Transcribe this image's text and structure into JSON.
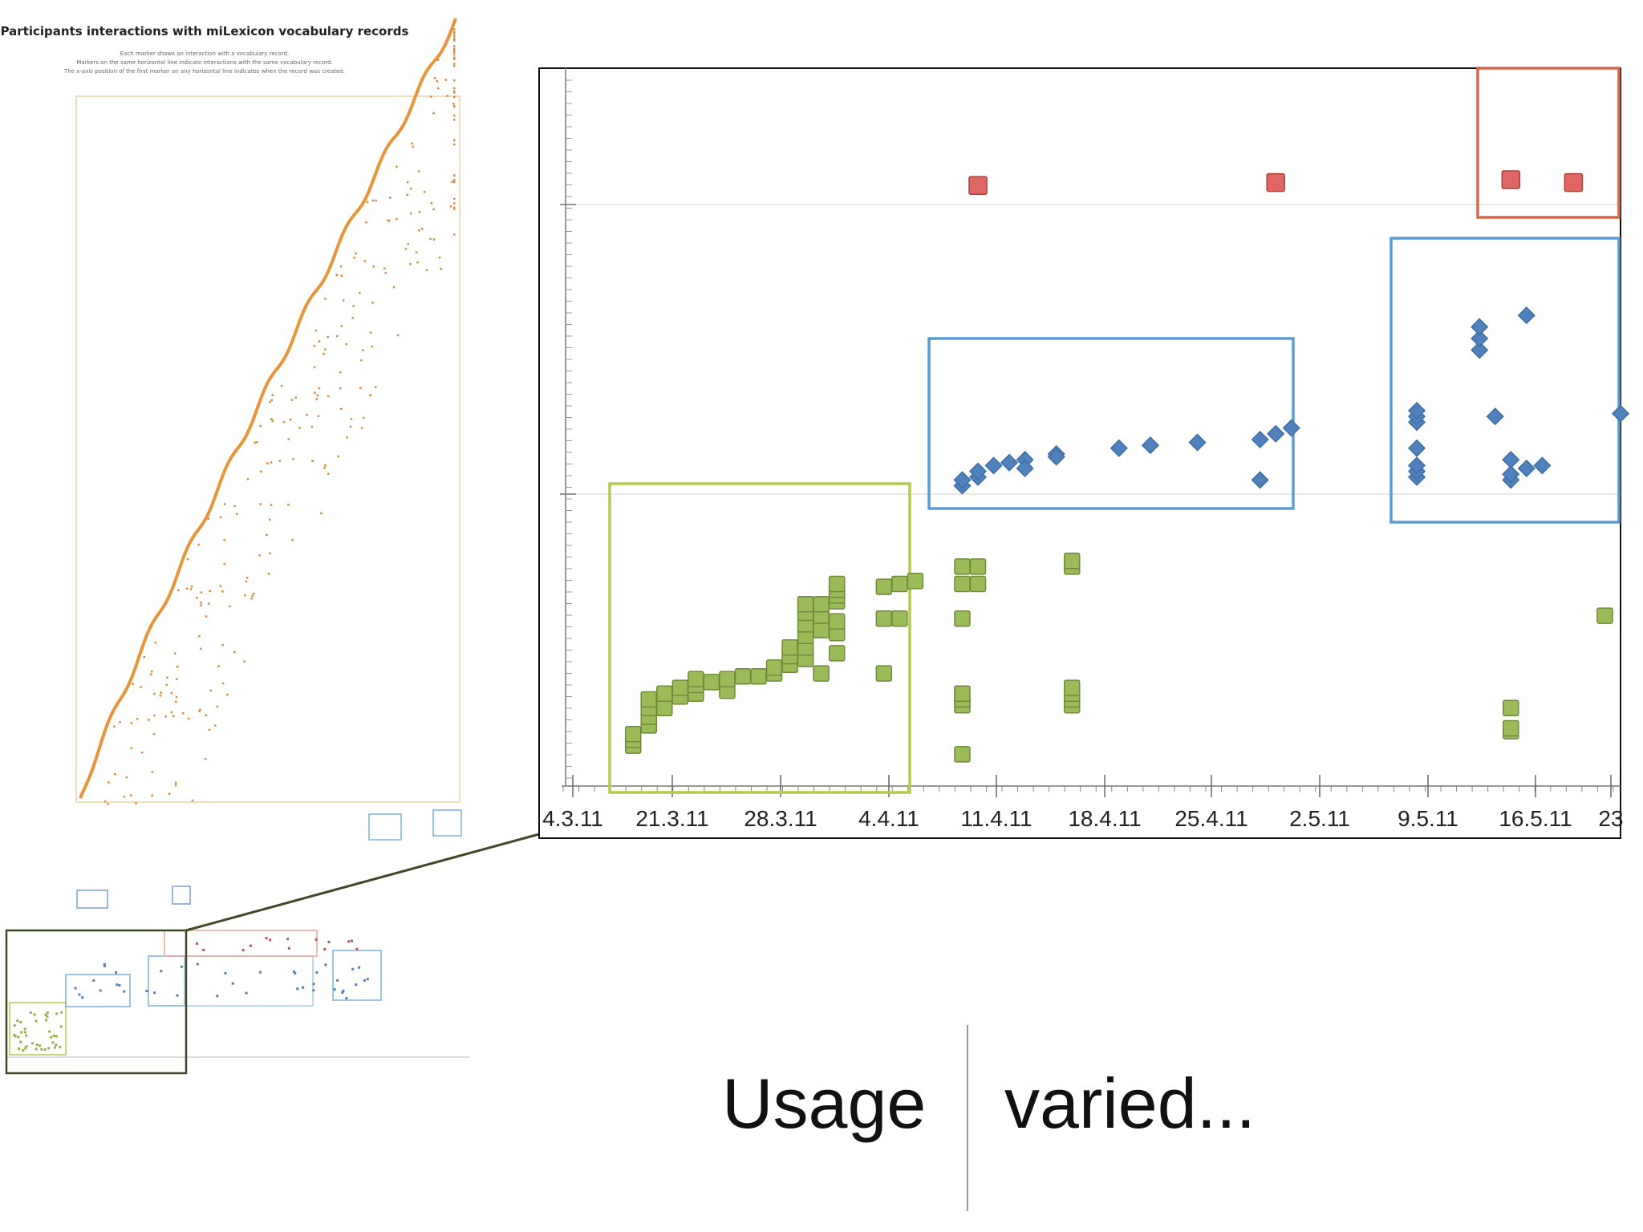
{
  "overview": {
    "title": "Participants interactions with miLexicon vocabulary records",
    "subtitle_lines": [
      "Each marker shows an interaction with a vocabulary record.",
      "Markers on the same horizontal line indicate interactions with the same vocabulary record.",
      "The x-axis position of the first marker on any horizontal line indicates when the record was created."
    ]
  },
  "chart_data": {
    "type": "scatter",
    "title": "",
    "xlabel": "",
    "ylabel": "",
    "x_tick_labels": [
      "4.3.11",
      "21.3.11",
      "28.3.11",
      "4.4.11",
      "11.4.11",
      "18.4.11",
      "25.4.11",
      "2.5.11",
      "9.5.11",
      "16.5.11",
      "23"
    ],
    "x_range_days": [
      "2011-03-14",
      "2011-05-22"
    ],
    "grid": "horizontal",
    "series": [
      {
        "marker": "square",
        "color": "#9bbb59",
        "points": [
          [
            "2011-03-20",
            14
          ],
          [
            "2011-03-20",
            16
          ],
          [
            "2011-03-20",
            18
          ],
          [
            "2011-03-21",
            21
          ],
          [
            "2011-03-21",
            24
          ],
          [
            "2011-03-21",
            27
          ],
          [
            "2011-03-21",
            30
          ],
          [
            "2011-03-22",
            27
          ],
          [
            "2011-03-22",
            32
          ],
          [
            "2011-03-23",
            31
          ],
          [
            "2011-03-23",
            34
          ],
          [
            "2011-03-24",
            32
          ],
          [
            "2011-03-24",
            35
          ],
          [
            "2011-03-24",
            37
          ],
          [
            "2011-03-25",
            36
          ],
          [
            "2011-03-26",
            33
          ],
          [
            "2011-03-26",
            37
          ],
          [
            "2011-03-27",
            38
          ],
          [
            "2011-03-28",
            38
          ],
          [
            "2011-03-29",
            39
          ],
          [
            "2011-03-29",
            41
          ],
          [
            "2011-03-30",
            42
          ],
          [
            "2011-03-30",
            45
          ],
          [
            "2011-03-30",
            48
          ],
          [
            "2011-03-31",
            44
          ],
          [
            "2011-03-31",
            48
          ],
          [
            "2011-03-31",
            52
          ],
          [
            "2011-03-31",
            56
          ],
          [
            "2011-03-31",
            60
          ],
          [
            "2011-03-31",
            63
          ],
          [
            "2011-04-01",
            39
          ],
          [
            "2011-04-01",
            54
          ],
          [
            "2011-04-01",
            59
          ],
          [
            "2011-04-01",
            63
          ],
          [
            "2011-04-02",
            46
          ],
          [
            "2011-04-02",
            53
          ],
          [
            "2011-04-02",
            57
          ],
          [
            "2011-04-02",
            64
          ],
          [
            "2011-04-02",
            66
          ],
          [
            "2011-04-02",
            68
          ],
          [
            "2011-04-02",
            70
          ],
          [
            "2011-04-05",
            39
          ],
          [
            "2011-04-05",
            58
          ],
          [
            "2011-04-05",
            69
          ],
          [
            "2011-04-06",
            58
          ],
          [
            "2011-04-06",
            70
          ],
          [
            "2011-04-07",
            71
          ],
          [
            "2011-04-10",
            11
          ],
          [
            "2011-04-10",
            28
          ],
          [
            "2011-04-10",
            30
          ],
          [
            "2011-04-10",
            32
          ],
          [
            "2011-04-10",
            58
          ],
          [
            "2011-04-10",
            76
          ],
          [
            "2011-04-10",
            70
          ],
          [
            "2011-04-11",
            76
          ],
          [
            "2011-04-11",
            70
          ],
          [
            "2011-04-17",
            28
          ],
          [
            "2011-04-17",
            30
          ],
          [
            "2011-04-17",
            32
          ],
          [
            "2011-04-17",
            34
          ],
          [
            "2011-04-17",
            76
          ],
          [
            "2011-04-17",
            78
          ],
          [
            "2011-05-15",
            19
          ],
          [
            "2011-05-15",
            20
          ],
          [
            "2011-05-15",
            27
          ],
          [
            "2011-05-21",
            59
          ]
        ]
      },
      {
        "marker": "diamond",
        "color": "#4f81bd",
        "points": [
          [
            "2011-04-10",
            104
          ],
          [
            "2011-04-10",
            106
          ],
          [
            "2011-04-11",
            107
          ],
          [
            "2011-04-11",
            109
          ],
          [
            "2011-04-12",
            111
          ],
          [
            "2011-04-13",
            112
          ],
          [
            "2011-04-14",
            113
          ],
          [
            "2011-04-14",
            110
          ],
          [
            "2011-04-16",
            115
          ],
          [
            "2011-04-16",
            114
          ],
          [
            "2011-04-20",
            117
          ],
          [
            "2011-04-22",
            118
          ],
          [
            "2011-04-25",
            119
          ],
          [
            "2011-04-29",
            106
          ],
          [
            "2011-04-29",
            120
          ],
          [
            "2011-04-30",
            122
          ],
          [
            "2011-05-01",
            124
          ],
          [
            "2011-05-09",
            107
          ],
          [
            "2011-05-09",
            109
          ],
          [
            "2011-05-09",
            111
          ],
          [
            "2011-05-09",
            117
          ],
          [
            "2011-05-09",
            126
          ],
          [
            "2011-05-09",
            128
          ],
          [
            "2011-05-09",
            130
          ],
          [
            "2011-05-13",
            151
          ],
          [
            "2011-05-13",
            155
          ],
          [
            "2011-05-13",
            159
          ],
          [
            "2011-05-14",
            128
          ],
          [
            "2011-05-15",
            106
          ],
          [
            "2011-05-15",
            108
          ],
          [
            "2011-05-15",
            113
          ],
          [
            "2011-05-16",
            110
          ],
          [
            "2011-05-16",
            163
          ],
          [
            "2011-05-17",
            111
          ],
          [
            "2011-05-22",
            129
          ]
        ]
      },
      {
        "marker": "square",
        "color": "#e06666",
        "points": [
          [
            "2011-04-11",
            208
          ],
          [
            "2011-04-30",
            209
          ],
          [
            "2011-05-15",
            210
          ],
          [
            "2011-05-19",
            209
          ]
        ]
      }
    ]
  },
  "caption": {
    "left": "Usage",
    "right": "varied..."
  }
}
